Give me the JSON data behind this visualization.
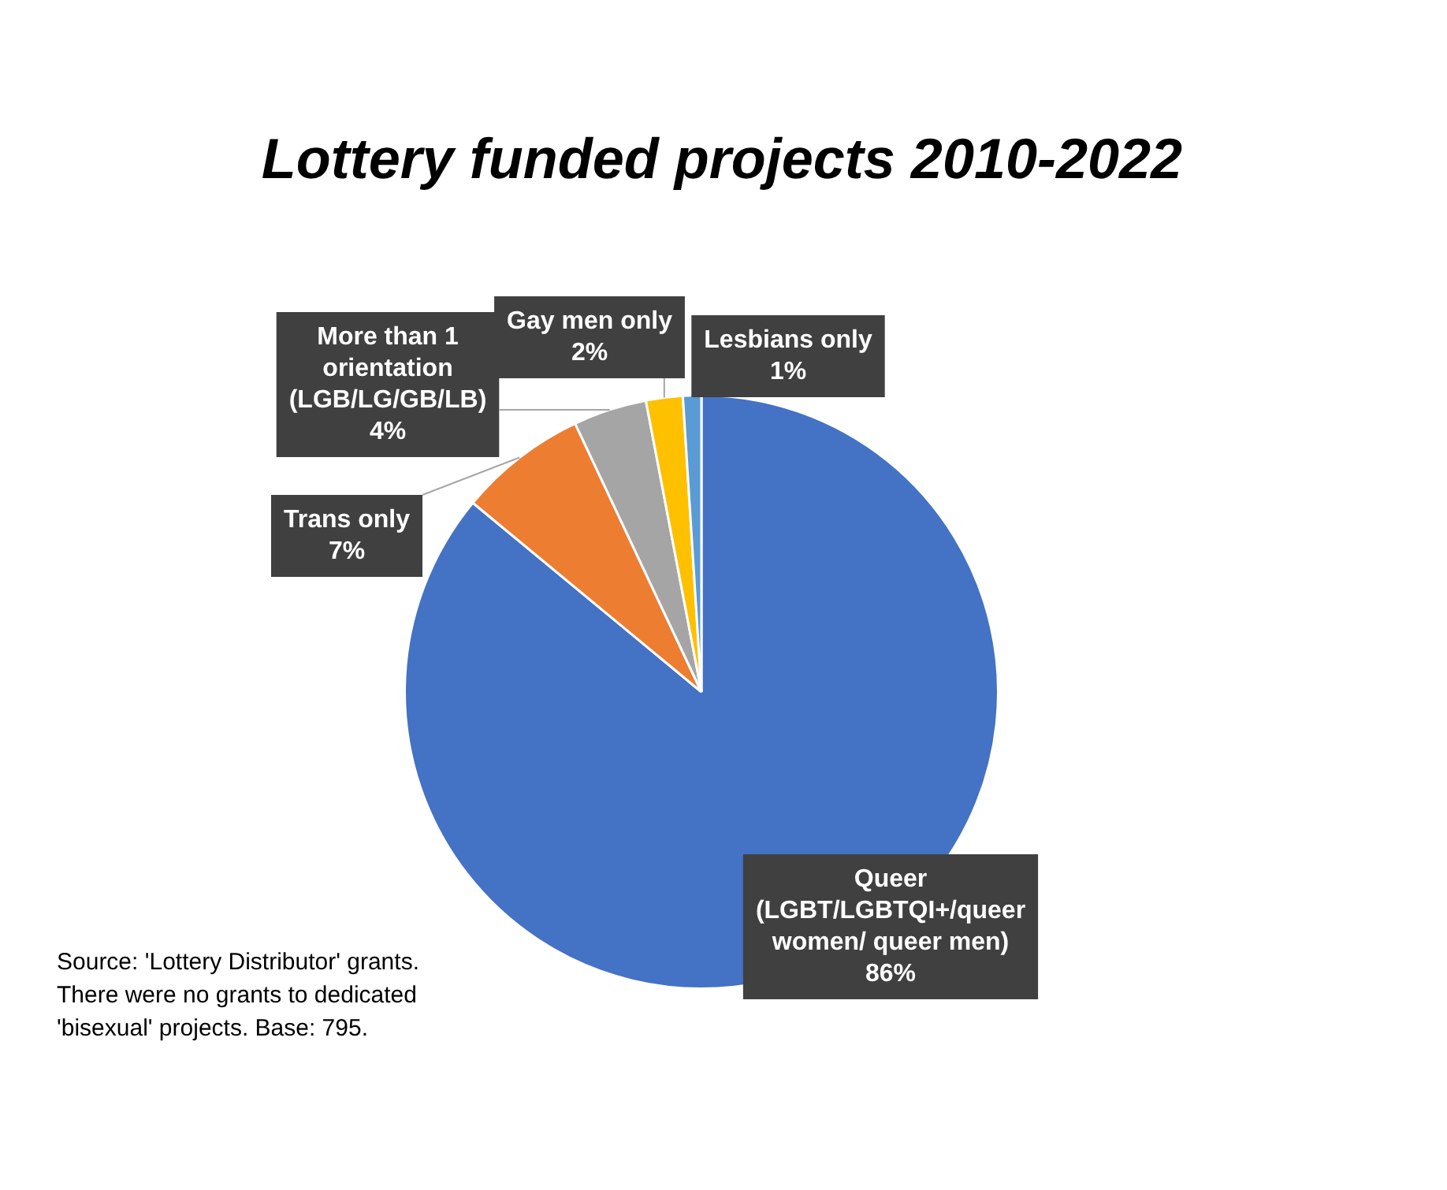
{
  "chart_data": {
    "type": "pie",
    "title": "Lottery funded projects 2010-2022",
    "categories": [
      "Queer (LGBT/LGBTQI+/queer women/ queer men)",
      "Trans only",
      "More than 1 orientation (LGB/LG/GB/LB)",
      "Gay men only",
      "Lesbians only"
    ],
    "values": [
      86,
      7,
      4,
      2,
      1
    ],
    "value_labels": [
      "86%",
      "7%",
      "4%",
      "2%",
      "1%"
    ],
    "colors": [
      "#4472c4",
      "#ed7d31",
      "#a5a5a5",
      "#ffc000",
      "#5b9bd5"
    ],
    "legend": false,
    "annotations": [
      "Source: 'Lottery Distributor' grants. There were no grants to dedicated 'bisexual' projects. Base: 795."
    ]
  }
}
